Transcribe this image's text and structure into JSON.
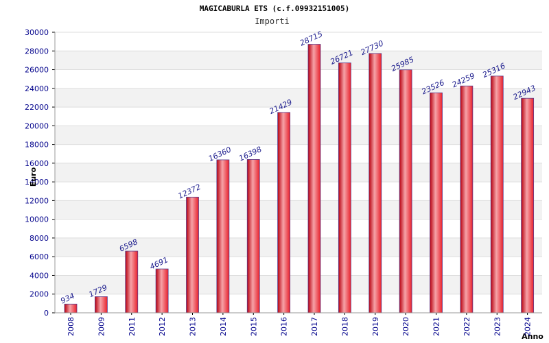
{
  "chart_data": {
    "type": "bar",
    "title": "MAGICABURLA ETS (c.f.09932151005)",
    "subtitle": "Importi",
    "xlabel": "Anno",
    "ylabel": "Euro",
    "ylim": [
      0,
      30000
    ],
    "yticks": [
      0,
      2000,
      4000,
      6000,
      8000,
      10000,
      12000,
      14000,
      16000,
      18000,
      20000,
      22000,
      24000,
      26000,
      28000,
      30000
    ],
    "grid": true,
    "categories": [
      "2008",
      "2009",
      "2011",
      "2012",
      "2013",
      "2014",
      "2015",
      "2016",
      "2017",
      "2018",
      "2019",
      "2020",
      "2021",
      "2022",
      "2023",
      "2024"
    ],
    "values": [
      934,
      1729,
      6598,
      4691,
      12372,
      16360,
      16398,
      21429,
      28715,
      26721,
      27730,
      25985,
      23526,
      24259,
      25316,
      22943
    ],
    "colors": {
      "bar_dark": "#b8000f",
      "bar_main": "#e8202b",
      "bar_light": "#f6a3a8",
      "bar_edge": "#5a3c8c",
      "axis_text": "#00008b",
      "value_text": "#1a1a8c",
      "band": "#f2f2f2"
    }
  }
}
